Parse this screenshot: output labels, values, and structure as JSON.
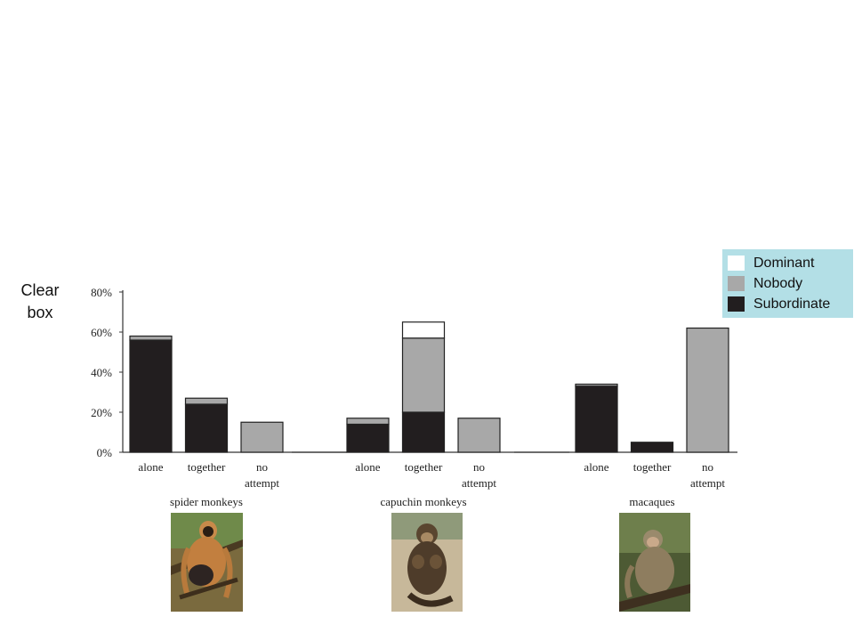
{
  "clear_box_label": "Clear\nbox",
  "legend": {
    "items": [
      {
        "label": "Dominant",
        "color": "#ffffff"
      },
      {
        "label": "Nobody",
        "color": "#a8a8a8"
      },
      {
        "label": "Subordinate",
        "color": "#221e1f"
      }
    ]
  },
  "chart_data": {
    "type": "bar",
    "stacked": true,
    "ylim": [
      0,
      80
    ],
    "y_ticks": [
      "0%",
      "20%",
      "40%",
      "60%",
      "80%"
    ],
    "groups": [
      {
        "name": "spider monkeys",
        "categories": [
          "alone",
          "together",
          "no attempt"
        ]
      },
      {
        "name": "capuchin monkeys",
        "categories": [
          "alone",
          "together",
          "no attempt"
        ]
      },
      {
        "name": "macaques",
        "categories": [
          "alone",
          "together",
          "no attempt"
        ]
      }
    ],
    "series": [
      {
        "name": "Subordinate",
        "color": "#221e1f",
        "values": [
          [
            56,
            24,
            0
          ],
          [
            14,
            20,
            0
          ],
          [
            33,
            5,
            0
          ]
        ]
      },
      {
        "name": "Nobody",
        "color": "#a8a8a8",
        "values": [
          [
            2,
            3,
            15
          ],
          [
            3,
            37,
            17
          ],
          [
            1,
            0,
            62
          ]
        ]
      },
      {
        "name": "Dominant",
        "color": "#ffffff",
        "values": [
          [
            0,
            0,
            0
          ],
          [
            0,
            8,
            0
          ],
          [
            0,
            0,
            0
          ]
        ]
      }
    ]
  },
  "photos": [
    {
      "subject": "spider monkey",
      "icon": "spider-monkey-photo"
    },
    {
      "subject": "capuchin monkey",
      "icon": "capuchin-monkey-photo"
    },
    {
      "subject": "macaque",
      "icon": "macaque-photo"
    }
  ]
}
